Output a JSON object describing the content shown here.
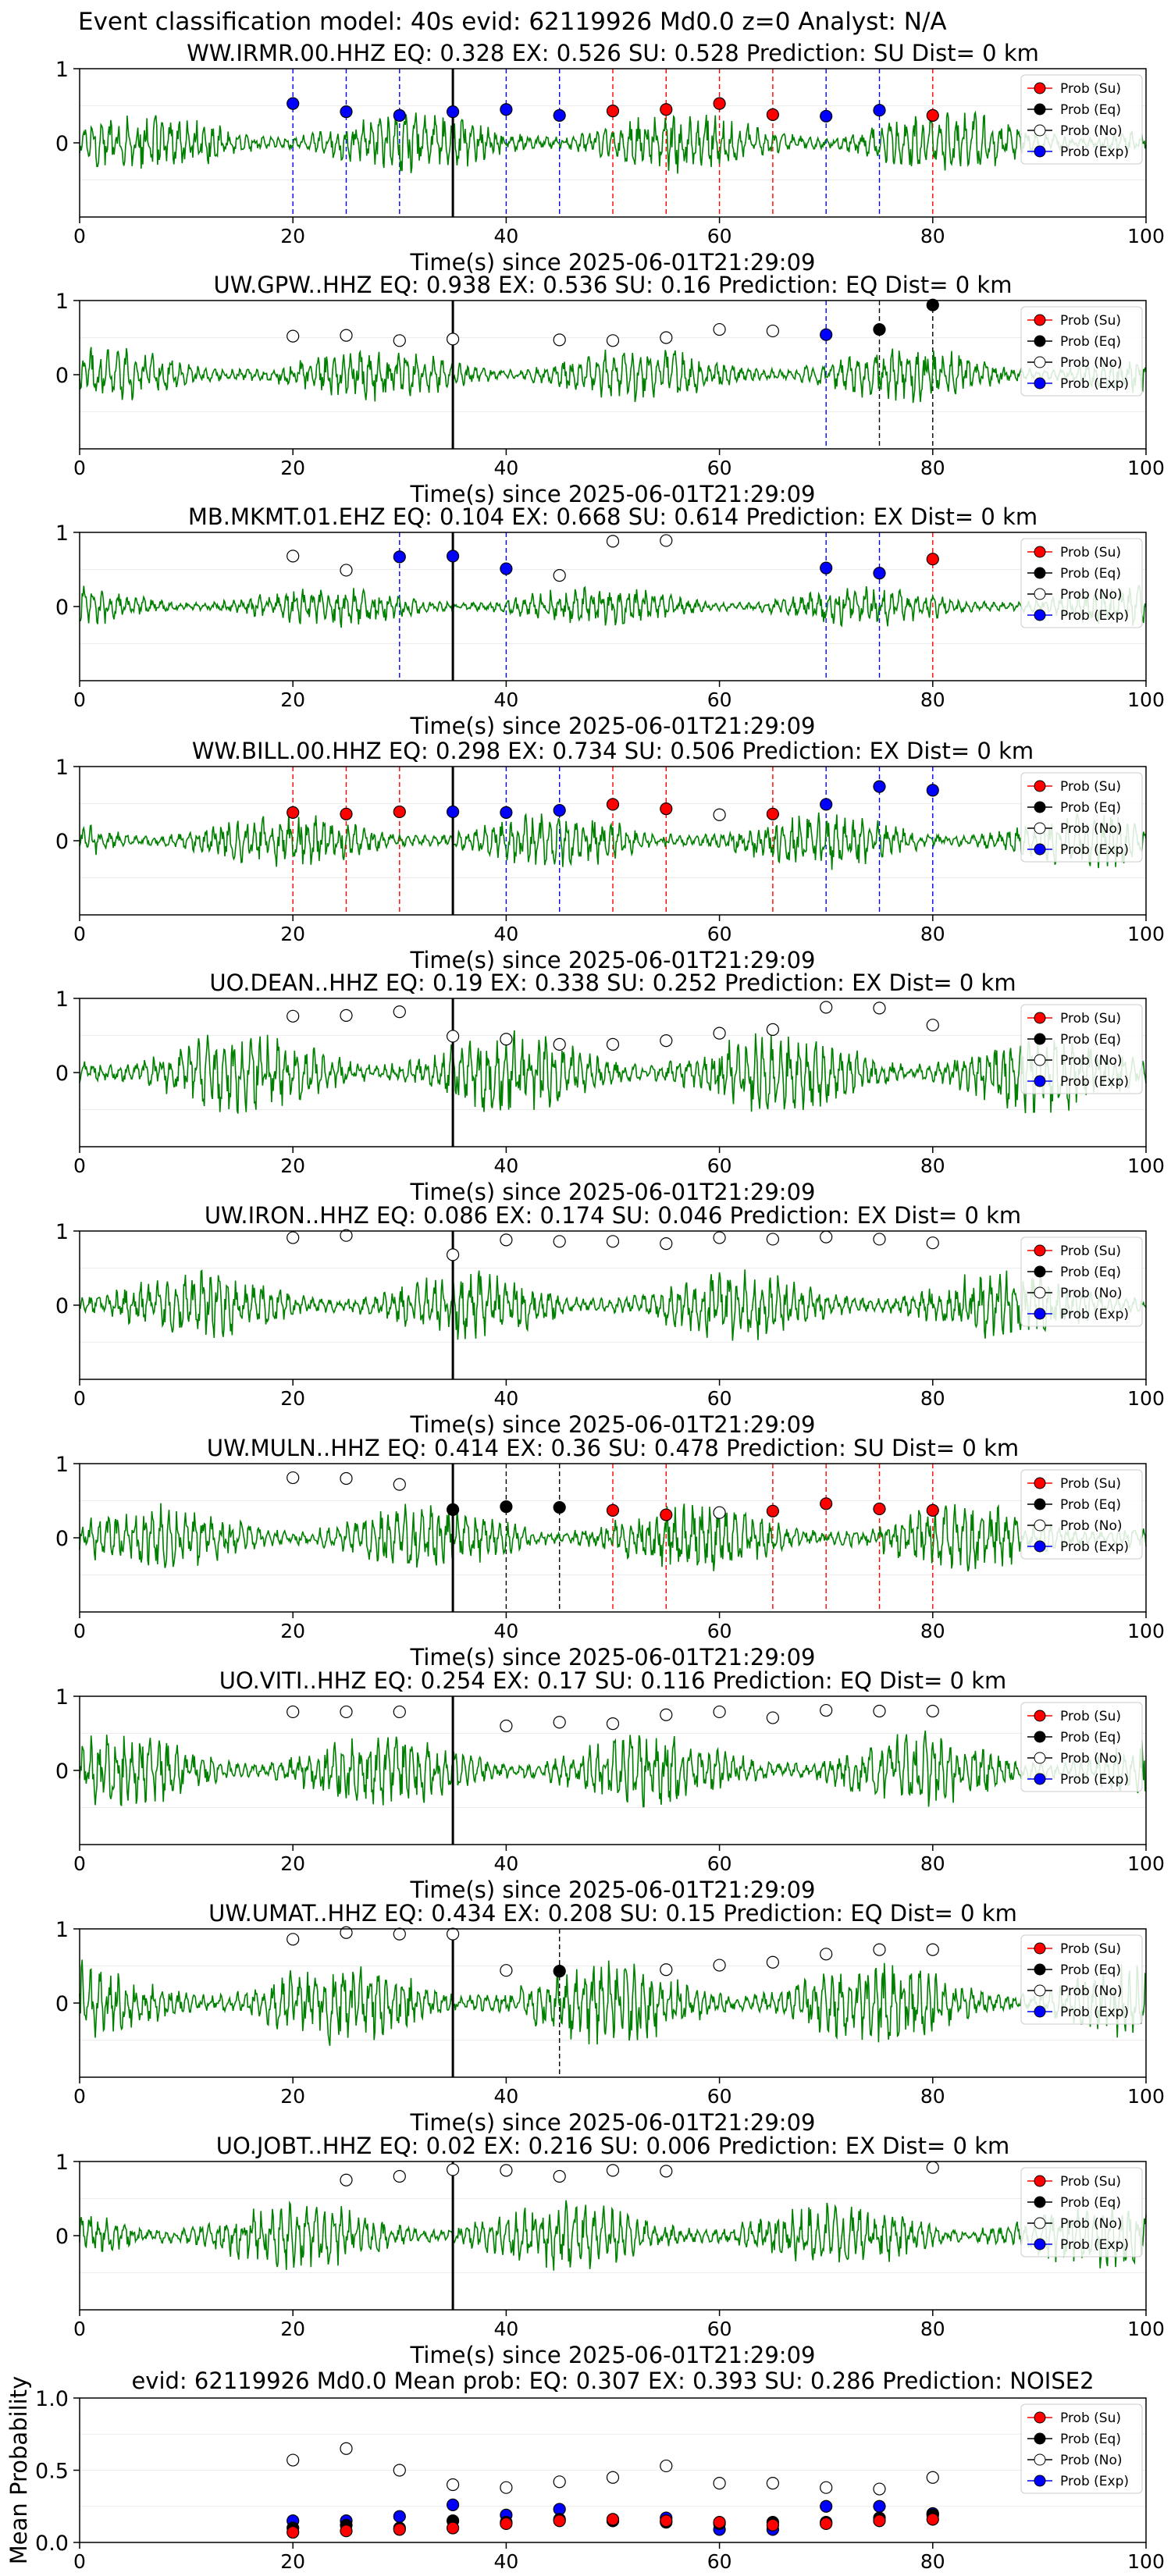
{
  "page_title": "Event classification model: 40s evid: 62119926 Md0.0 z=0 Analyst: N/A",
  "legend_labels": [
    "Prob (Su)",
    "Prob (Eq)",
    "Prob (No)",
    "Prob (Exp)"
  ],
  "colors": {
    "waveform": "#008000",
    "su": "#ff0000",
    "eq": "#000000",
    "no": "#ffffff",
    "exp": "#0000ff",
    "pick_line": "#000000"
  },
  "chart_data": [
    {
      "type": "line",
      "title": "WW.IRMR.00.HHZ   EQ: 0.328  EX: 0.526  SU: 0.528   Prediction: SU    Dist= 0 km",
      "xlabel": "Time(s) since 2025-06-01T21:29:09",
      "xlim": [
        0,
        100
      ],
      "ylim": [
        -1,
        1
      ],
      "x_ticks": [
        "0",
        "20",
        "40",
        "60",
        "80",
        "100"
      ],
      "y_ticks": [
        "0",
        "1"
      ],
      "grid": "horizontal",
      "legend_placement": "top-right",
      "pick_time": 35,
      "waveform_amplitude": 0.45,
      "series": [
        {
          "key": "su",
          "x": [
            50,
            55,
            60,
            65,
            80
          ],
          "y": [
            0.43,
            0.45,
            0.53,
            0.38,
            0.37
          ]
        },
        {
          "key": "eq",
          "x": [],
          "y": []
        },
        {
          "key": "no",
          "x": [],
          "y": []
        },
        {
          "key": "exp",
          "x": [
            20,
            25,
            30,
            35,
            40,
            45,
            70,
            75
          ],
          "y": [
            0.53,
            0.42,
            0.37,
            0.42,
            0.45,
            0.37,
            0.36,
            0.44
          ]
        }
      ]
    },
    {
      "type": "line",
      "title": "UW.GPW..HHZ   EQ: 0.938  EX: 0.536  SU: 0.16   Prediction: EQ    Dist= 0 km",
      "xlabel": "Time(s) since 2025-06-01T21:29:09",
      "xlim": [
        0,
        100
      ],
      "ylim": [
        -1,
        1
      ],
      "x_ticks": [
        "0",
        "20",
        "40",
        "60",
        "80",
        "100"
      ],
      "y_ticks": [
        "0",
        "1"
      ],
      "grid": "horizontal",
      "legend_placement": "top-right",
      "pick_time": 35,
      "waveform_amplitude": 0.4,
      "series": [
        {
          "key": "su",
          "x": [],
          "y": []
        },
        {
          "key": "eq",
          "x": [
            75,
            80
          ],
          "y": [
            0.61,
            0.94
          ]
        },
        {
          "key": "no",
          "x": [
            20,
            25,
            30,
            35,
            45,
            50,
            55,
            60,
            65
          ],
          "y": [
            0.52,
            0.53,
            0.46,
            0.48,
            0.47,
            0.46,
            0.5,
            0.61,
            0.59
          ]
        },
        {
          "key": "exp",
          "x": [
            70
          ],
          "y": [
            0.54
          ]
        }
      ]
    },
    {
      "type": "line",
      "title": "MB.MKMT.01.EHZ   EQ: 0.104  EX: 0.668  SU: 0.614   Prediction: EX    Dist= 0 km",
      "xlabel": "Time(s) since 2025-06-01T21:29:09",
      "xlim": [
        0,
        100
      ],
      "ylim": [
        -1,
        1
      ],
      "x_ticks": [
        "0",
        "20",
        "40",
        "60",
        "80",
        "100"
      ],
      "y_ticks": [
        "0",
        "1"
      ],
      "grid": "horizontal",
      "legend_placement": "top-right",
      "pick_time": 35,
      "waveform_amplitude": 0.3,
      "series": [
        {
          "key": "su",
          "x": [
            80
          ],
          "y": [
            0.64
          ]
        },
        {
          "key": "eq",
          "x": [],
          "y": []
        },
        {
          "key": "no",
          "x": [
            20,
            25,
            45,
            50,
            55
          ],
          "y": [
            0.68,
            0.49,
            0.42,
            0.88,
            0.89
          ]
        },
        {
          "key": "exp",
          "x": [
            30,
            35,
            40,
            70,
            75
          ],
          "y": [
            0.67,
            0.68,
            0.51,
            0.52,
            0.45
          ]
        }
      ]
    },
    {
      "type": "line",
      "title": "WW.BILL.00.HHZ   EQ: 0.298  EX: 0.734  SU: 0.506   Prediction: EX    Dist= 0 km",
      "xlabel": "Time(s) since 2025-06-01T21:29:09",
      "xlim": [
        0,
        100
      ],
      "ylim": [
        -1,
        1
      ],
      "x_ticks": [
        "0",
        "20",
        "40",
        "60",
        "80",
        "100"
      ],
      "y_ticks": [
        "0",
        "1"
      ],
      "grid": "horizontal",
      "legend_placement": "top-right",
      "pick_time": 35,
      "waveform_amplitude": 0.4,
      "series": [
        {
          "key": "su",
          "x": [
            20,
            25,
            30,
            50,
            55,
            65
          ],
          "y": [
            0.38,
            0.36,
            0.39,
            0.49,
            0.43,
            0.36
          ]
        },
        {
          "key": "eq",
          "x": [],
          "y": []
        },
        {
          "key": "no",
          "x": [
            60
          ],
          "y": [
            0.35
          ]
        },
        {
          "key": "exp",
          "x": [
            35,
            40,
            45,
            70,
            75,
            80
          ],
          "y": [
            0.39,
            0.38,
            0.41,
            0.49,
            0.73,
            0.68
          ]
        }
      ]
    },
    {
      "type": "line",
      "title": "UO.DEAN..HHZ   EQ: 0.19  EX: 0.338  SU: 0.252   Prediction: EX    Dist= 0 km",
      "xlabel": "Time(s) since 2025-06-01T21:29:09",
      "xlim": [
        0,
        100
      ],
      "ylim": [
        -1,
        1
      ],
      "x_ticks": [
        "0",
        "20",
        "40",
        "60",
        "80",
        "100"
      ],
      "y_ticks": [
        "0",
        "1"
      ],
      "grid": "horizontal",
      "legend_placement": "top-right",
      "pick_time": 35,
      "waveform_amplitude": 0.6,
      "series": [
        {
          "key": "su",
          "x": [],
          "y": []
        },
        {
          "key": "eq",
          "x": [],
          "y": []
        },
        {
          "key": "no",
          "x": [
            20,
            25,
            30,
            35,
            40,
            45,
            50,
            55,
            60,
            65,
            70,
            75,
            80
          ],
          "y": [
            0.76,
            0.77,
            0.82,
            0.49,
            0.45,
            0.38,
            0.38,
            0.43,
            0.53,
            0.58,
            0.88,
            0.87,
            0.64
          ]
        },
        {
          "key": "exp",
          "x": [],
          "y": []
        }
      ]
    },
    {
      "type": "line",
      "title": "UW.IRON..HHZ   EQ: 0.086  EX: 0.174  SU: 0.046   Prediction: EX    Dist= 0 km",
      "xlabel": "Time(s) since 2025-06-01T21:29:09",
      "xlim": [
        0,
        100
      ],
      "ylim": [
        -1,
        1
      ],
      "x_ticks": [
        "0",
        "20",
        "40",
        "60",
        "80",
        "100"
      ],
      "y_ticks": [
        "0",
        "1"
      ],
      "grid": "horizontal",
      "legend_placement": "top-right",
      "pick_time": 35,
      "waveform_amplitude": 0.5,
      "series": [
        {
          "key": "su",
          "x": [],
          "y": []
        },
        {
          "key": "eq",
          "x": [],
          "y": []
        },
        {
          "key": "no",
          "x": [
            20,
            25,
            35,
            40,
            45,
            50,
            55,
            60,
            65,
            70,
            75,
            80
          ],
          "y": [
            0.91,
            0.94,
            0.68,
            0.88,
            0.86,
            0.86,
            0.83,
            0.91,
            0.89,
            0.92,
            0.89,
            0.84
          ]
        },
        {
          "key": "exp",
          "x": [],
          "y": []
        }
      ]
    },
    {
      "type": "line",
      "title": "UW.MULN..HHZ   EQ: 0.414  EX: 0.36  SU: 0.478   Prediction: SU    Dist= 0 km",
      "xlabel": "Time(s) since 2025-06-01T21:29:09",
      "xlim": [
        0,
        100
      ],
      "ylim": [
        -1,
        1
      ],
      "x_ticks": [
        "0",
        "20",
        "40",
        "60",
        "80",
        "100"
      ],
      "y_ticks": [
        "0",
        "1"
      ],
      "grid": "horizontal",
      "legend_placement": "top-right",
      "pick_time": 35,
      "waveform_amplitude": 0.5,
      "series": [
        {
          "key": "su",
          "x": [
            50,
            55,
            65,
            70,
            75,
            80
          ],
          "y": [
            0.37,
            0.31,
            0.36,
            0.46,
            0.39,
            0.37
          ]
        },
        {
          "key": "eq",
          "x": [
            35,
            40,
            45
          ],
          "y": [
            0.38,
            0.42,
            0.41
          ]
        },
        {
          "key": "no",
          "x": [
            20,
            25,
            30,
            60
          ],
          "y": [
            0.81,
            0.8,
            0.72,
            0.34
          ]
        },
        {
          "key": "exp",
          "x": [],
          "y": []
        }
      ]
    },
    {
      "type": "line",
      "title": "UO.VITI..HHZ   EQ: 0.254  EX: 0.17  SU: 0.116   Prediction: EQ    Dist= 0 km",
      "xlabel": "Time(s) since 2025-06-01T21:29:09",
      "xlim": [
        0,
        100
      ],
      "ylim": [
        -1,
        1
      ],
      "x_ticks": [
        "0",
        "20",
        "40",
        "60",
        "80",
        "100"
      ],
      "y_ticks": [
        "0",
        "1"
      ],
      "grid": "horizontal",
      "legend_placement": "top-right",
      "pick_time": 35,
      "waveform_amplitude": 0.55,
      "series": [
        {
          "key": "su",
          "x": [],
          "y": []
        },
        {
          "key": "eq",
          "x": [],
          "y": []
        },
        {
          "key": "no",
          "x": [
            20,
            25,
            30,
            40,
            45,
            50,
            55,
            60,
            65,
            70,
            75,
            80
          ],
          "y": [
            0.79,
            0.79,
            0.79,
            0.6,
            0.65,
            0.63,
            0.75,
            0.79,
            0.71,
            0.81,
            0.8,
            0.8
          ]
        },
        {
          "key": "exp",
          "x": [],
          "y": []
        }
      ]
    },
    {
      "type": "line",
      "title": "UW.UMAT..HHZ   EQ: 0.434  EX: 0.208  SU: 0.15   Prediction: EQ    Dist= 0 km",
      "xlabel": "Time(s) since 2025-06-01T21:29:09",
      "xlim": [
        0,
        100
      ],
      "ylim": [
        -1,
        1
      ],
      "x_ticks": [
        "0",
        "20",
        "40",
        "60",
        "80",
        "100"
      ],
      "y_ticks": [
        "0",
        "1"
      ],
      "grid": "horizontal",
      "legend_placement": "top-right",
      "pick_time": 35,
      "waveform_amplitude": 0.6,
      "series": [
        {
          "key": "su",
          "x": [],
          "y": []
        },
        {
          "key": "eq",
          "x": [
            45
          ],
          "y": [
            0.43
          ]
        },
        {
          "key": "no",
          "x": [
            20,
            25,
            30,
            35,
            40,
            55,
            60,
            65,
            70,
            75,
            80
          ],
          "y": [
            0.86,
            0.95,
            0.93,
            0.93,
            0.44,
            0.45,
            0.51,
            0.55,
            0.66,
            0.72,
            0.72
          ]
        },
        {
          "key": "exp",
          "x": [],
          "y": []
        }
      ]
    },
    {
      "type": "line",
      "title": "UO.JOBT..HHZ   EQ: 0.02  EX: 0.216  SU: 0.006   Prediction: EX    Dist= 0 km",
      "xlabel": "Time(s) since 2025-06-01T21:29:09",
      "xlim": [
        0,
        100
      ],
      "ylim": [
        -1,
        1
      ],
      "x_ticks": [
        "0",
        "20",
        "40",
        "60",
        "80",
        "100"
      ],
      "y_ticks": [
        "0",
        "1"
      ],
      "grid": "horizontal",
      "legend_placement": "top-right",
      "pick_time": 35,
      "waveform_amplitude": 0.5,
      "series": [
        {
          "key": "su",
          "x": [],
          "y": []
        },
        {
          "key": "eq",
          "x": [],
          "y": []
        },
        {
          "key": "no",
          "x": [
            25,
            30,
            35,
            40,
            45,
            50,
            55,
            80
          ],
          "y": [
            0.75,
            0.8,
            0.89,
            0.88,
            0.8,
            0.88,
            0.87,
            0.92
          ]
        },
        {
          "key": "exp",
          "x": [],
          "y": []
        }
      ]
    },
    {
      "type": "scatter",
      "title": "evid: 62119926  Md0.0   Mean prob:   EQ: 0.307  EX: 0.393  SU: 0.286   Prediction: NOISE2",
      "xlabel": "",
      "ylabel": "Mean Probability",
      "xlim": [
        0,
        100
      ],
      "ylim": [
        0,
        1
      ],
      "x_ticks": [
        "0",
        "20",
        "40",
        "60",
        "80",
        "100"
      ],
      "y_ticks": [
        "0.0",
        "0.5",
        "1.0"
      ],
      "grid": "horizontal",
      "legend_placement": "top-right",
      "series": [
        {
          "key": "no",
          "x": [
            20,
            25,
            30,
            35,
            40,
            45,
            50,
            55,
            60,
            65,
            70,
            75,
            80
          ],
          "y": [
            0.57,
            0.65,
            0.5,
            0.4,
            0.38,
            0.42,
            0.45,
            0.53,
            0.41,
            0.41,
            0.38,
            0.37,
            0.45
          ]
        },
        {
          "key": "exp",
          "x": [
            20,
            25,
            30,
            35,
            40,
            45,
            50,
            55,
            60,
            65,
            70,
            75,
            80
          ],
          "y": [
            0.15,
            0.15,
            0.18,
            0.26,
            0.19,
            0.23,
            0.15,
            0.17,
            0.09,
            0.09,
            0.25,
            0.25,
            0.2
          ]
        },
        {
          "key": "eq",
          "x": [
            20,
            25,
            30,
            35,
            40,
            45,
            50,
            55,
            60,
            65,
            70,
            75,
            80
          ],
          "y": [
            0.1,
            0.12,
            0.1,
            0.15,
            0.14,
            0.16,
            0.15,
            0.14,
            0.13,
            0.14,
            0.14,
            0.17,
            0.19
          ]
        },
        {
          "key": "su",
          "x": [
            20,
            25,
            30,
            35,
            40,
            45,
            50,
            55,
            60,
            65,
            70,
            75,
            80
          ],
          "y": [
            0.07,
            0.08,
            0.09,
            0.1,
            0.13,
            0.15,
            0.16,
            0.15,
            0.14,
            0.12,
            0.13,
            0.15,
            0.16
          ]
        }
      ]
    }
  ]
}
